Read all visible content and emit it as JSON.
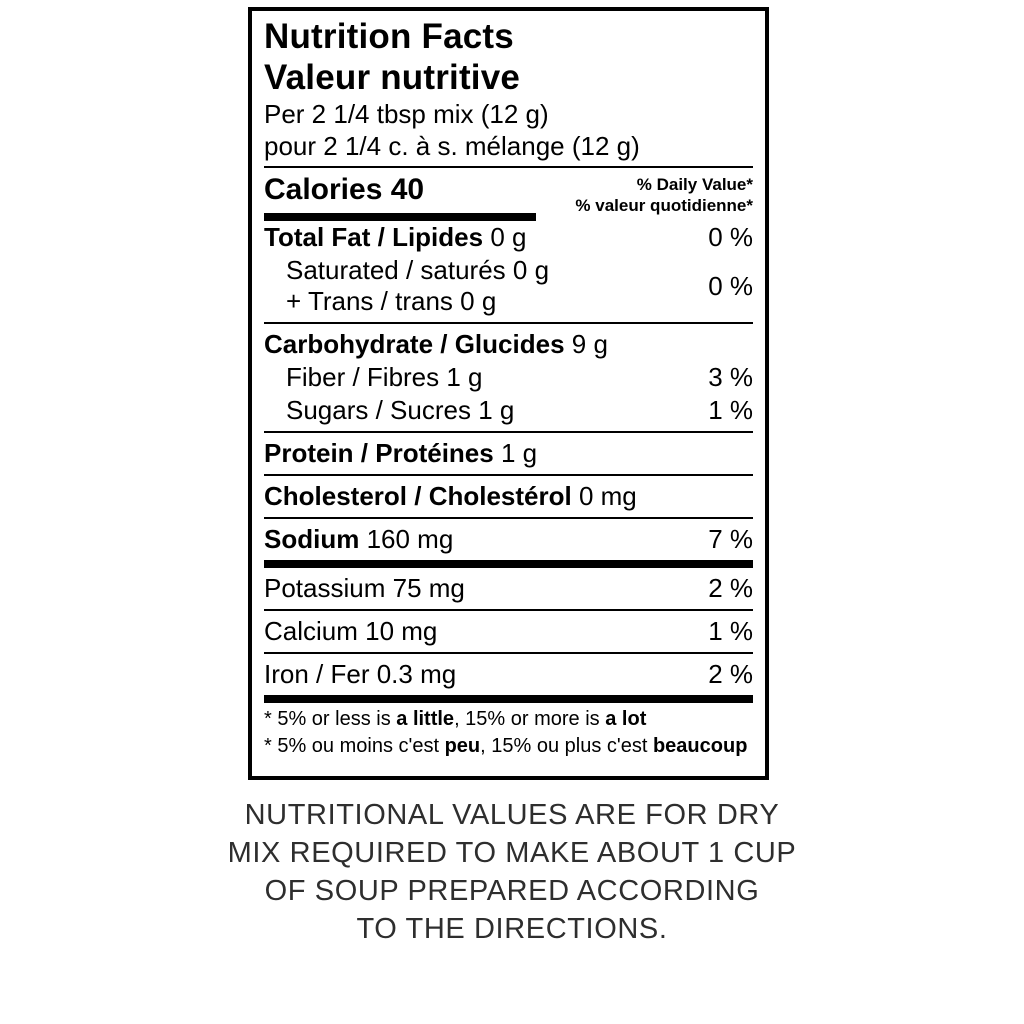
{
  "label": {
    "title_en": "Nutrition Facts",
    "title_fr": "Valeur nutritive",
    "serving_en": "Per 2 1/4 tbsp mix (12 g)",
    "serving_fr": "pour 2 1/4 c. à s. mélange (12 g)",
    "calories": "Calories 40",
    "daily_value_en": "% Daily Value*",
    "daily_value_fr": "% valeur quotidienne*",
    "rows": {
      "total_fat": {
        "bold": "Total Fat / Lipides",
        "rest": " 0 g",
        "percent": "0 %"
      },
      "saturated_trans": {
        "line1": "Saturated / saturés 0 g",
        "line2": "+ Trans / trans 0 g",
        "percent": "0 %"
      },
      "carbohydrate": {
        "bold": "Carbohydrate / Glucides",
        "rest": " 9 g"
      },
      "fiber": {
        "text": "Fiber / Fibres 1 g",
        "percent": "3 %"
      },
      "sugars": {
        "text": "Sugars / Sucres 1 g",
        "percent": "1 %"
      },
      "protein": {
        "bold": "Protein / Protéines",
        "rest": " 1 g"
      },
      "cholesterol": {
        "bold": "Cholesterol / Cholestérol",
        "rest": " 0 mg"
      },
      "sodium": {
        "bold": "Sodium",
        "rest": " 160 mg",
        "percent": "7 %"
      },
      "potassium": {
        "text": "Potassium 75 mg",
        "percent": "2 %"
      },
      "calcium": {
        "text": "Calcium 10 mg",
        "percent": "1 %"
      },
      "iron": {
        "text": "Iron / Fer 0.3 mg",
        "percent": "2 %"
      }
    },
    "footnote_en": {
      "p1": "* 5% or less is ",
      "b1": "a little",
      "p2": ", 15% or more is ",
      "b2": "a lot"
    },
    "footnote_fr": {
      "p1": "* 5% ou moins c'est ",
      "b1": "peu",
      "p2": ", 15% ou plus c'est ",
      "b2": "beaucoup"
    }
  },
  "caption": {
    "line1": "NUTRITIONAL VALUES ARE FOR DRY",
    "line2": "MIX REQUIRED TO MAKE ABOUT 1 CUP",
    "line3": "OF SOUP PREPARED ACCORDING",
    "line4": "TO THE DIRECTIONS."
  },
  "colors": {
    "border": "#000000",
    "text": "#000000",
    "caption_text": "#2e2e2e",
    "background": "#ffffff"
  }
}
